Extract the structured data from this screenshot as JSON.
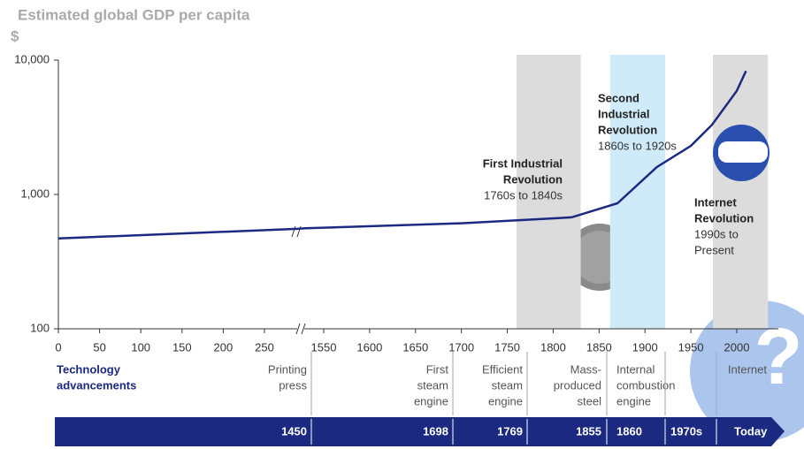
{
  "chart_data": {
    "type": "line",
    "title": "Estimated global GDP per capita",
    "subtitle": "$",
    "log_scale": true,
    "ylim": [
      100,
      10000
    ],
    "yticks": [
      100,
      {
        "value": 1000,
        "label": "1,000"
      },
      {
        "value": 10000,
        "label": "10,000"
      }
    ],
    "xlim": [
      0,
      2030
    ],
    "x_break": [
      290,
      1530
    ],
    "xticks": [
      0,
      50,
      100,
      150,
      200,
      250,
      1550,
      1600,
      1650,
      1700,
      1750,
      1800,
      1850,
      1900,
      1950,
      2000
    ],
    "series": [
      {
        "color": "#1b2a80",
        "x": [
          0,
          290,
          1530,
          1700,
          1820,
          1870,
          1913,
          1950,
          1973,
          2000,
          2010
        ],
        "values": [
          470,
          555,
          560,
          610,
          675,
          860,
          1600,
          2300,
          3300,
          5900,
          8300
        ]
      }
    ],
    "bands": [
      {
        "start": 1760,
        "end": 1830,
        "color": "#dcdcdc"
      },
      {
        "start": 1862,
        "end": 1922,
        "color": "#cfeaf8"
      },
      {
        "start": 1974,
        "end": 2034,
        "color": "#dcdcdc"
      }
    ],
    "annotations": [
      {
        "title": [
          "First Industrial",
          "Revolution"
        ],
        "period": [
          "1760s to 1840s"
        ]
      },
      {
        "title": [
          "Second",
          "Industrial",
          "Revolution"
        ],
        "period": [
          "1860s to 1920s"
        ]
      },
      {
        "title": [
          "Internet",
          "Revolution"
        ],
        "period": [
          "1990s to",
          "Present"
        ]
      }
    ],
    "timeline": {
      "label": [
        "Technology",
        "advancements"
      ],
      "items": [
        {
          "name": [
            "Printing",
            "press"
          ],
          "year": "1450"
        },
        {
          "name": [
            "First",
            "steam",
            "engine"
          ],
          "year": "1698"
        },
        {
          "name": [
            "Efficient",
            "steam",
            "engine"
          ],
          "year": "1769"
        },
        {
          "name": [
            "Mass-",
            "produced",
            "steel"
          ],
          "year": "1855"
        },
        {
          "name": [
            "Internal",
            "combustion",
            "engine"
          ],
          "year": "1860"
        },
        {
          "name": [],
          "year": "1970s"
        },
        {
          "name": [
            "Internet"
          ],
          "year": "Today"
        }
      ]
    }
  }
}
